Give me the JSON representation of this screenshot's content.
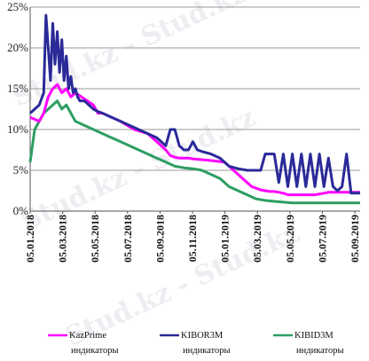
{
  "chart_data": {
    "type": "line",
    "y_ticks": [
      "0%",
      "5%",
      "10%",
      "15%",
      "20%",
      "25%"
    ],
    "ylim": [
      0,
      25
    ],
    "grid": true,
    "x_ticks": [
      "05.01.2018",
      "05.03.2018",
      "05.05.2018",
      "05.07.2018",
      "05.09.2018",
      "05.11.2018",
      "05.01.2019",
      "05.03.2019",
      "05.05.2019",
      "05.07.2019",
      "05.09.2019"
    ],
    "legend_position": "bottom",
    "series": [
      {
        "name": "KazPrime",
        "name_line2": "индикаторы",
        "color": "#ff00ff",
        "x": [
          0,
          2,
          3,
          4,
          5,
          6,
          7,
          8,
          9,
          10,
          14,
          15,
          16,
          18,
          20,
          23,
          26,
          28,
          30,
          31,
          32,
          33,
          34,
          35,
          36,
          38,
          40,
          43,
          44,
          45,
          46,
          47,
          48,
          49,
          50,
          51,
          52,
          53,
          54,
          55,
          56,
          57,
          58,
          59,
          60,
          61,
          62,
          63,
          64,
          65,
          66,
          67,
          68,
          69,
          70,
          71,
          72,
          73
        ],
        "values": [
          11.5,
          11,
          12,
          14,
          15,
          15.5,
          14.5,
          15,
          14,
          14.5,
          13,
          12,
          12,
          11.5,
          11,
          10,
          9.5,
          8.5,
          7.5,
          6.8,
          6.6,
          6.5,
          6.5,
          6.5,
          6.4,
          6.3,
          6.2,
          6.0,
          5.5,
          5.0,
          4.5,
          4.0,
          3.5,
          3.0,
          2.8,
          2.6,
          2.5,
          2.4,
          2.4,
          2.3,
          2.2,
          2.0,
          2.0,
          2.0,
          2.0,
          2.0,
          2.0,
          2.0,
          2.1,
          2.2,
          2.3,
          2.3,
          2.3,
          2.3,
          2.3,
          2.3,
          2.3,
          2.3
        ]
      },
      {
        "name": "KIBOR3M",
        "name_line2": "индикаторы",
        "color": "#2a2a99",
        "x": [
          0,
          1,
          2,
          3,
          3.5,
          4,
          4.5,
          5,
          5.5,
          6,
          6.5,
          7,
          7.5,
          8,
          8.5,
          9,
          9.5,
          10,
          10.5,
          11,
          12,
          13,
          14,
          15,
          16,
          18,
          20,
          22,
          24,
          26,
          28,
          29,
          30,
          31,
          32,
          33,
          34,
          35,
          36,
          37,
          38,
          40,
          42,
          44,
          46,
          48,
          50,
          51,
          52,
          53,
          54,
          55,
          56,
          57,
          58,
          59,
          60,
          61,
          62,
          63,
          64,
          65,
          66,
          67,
          68,
          69,
          70,
          71,
          72,
          73
        ],
        "values": [
          12,
          12.5,
          13,
          14.5,
          24,
          20,
          16,
          23,
          18,
          22,
          17,
          21,
          16,
          19,
          15,
          16.5,
          14.5,
          15,
          14,
          13.5,
          13.5,
          13,
          12.5,
          12.2,
          12,
          11.5,
          11,
          10.5,
          10,
          9.5,
          9,
          8.5,
          8,
          10,
          10,
          8,
          7.5,
          7.5,
          8.5,
          7.5,
          7.3,
          7,
          6.5,
          5.5,
          5.2,
          5.0,
          5.0,
          5.0,
          7.0,
          7.0,
          7.0,
          3.5,
          7.0,
          3.0,
          7.0,
          3.0,
          7.0,
          3.0,
          7.0,
          3.0,
          7.0,
          3.0,
          6.5,
          3.0,
          2.5,
          3.0,
          7.0,
          2.2,
          2.2,
          2.2
        ]
      },
      {
        "name": "KIBID3M",
        "name_line2": "индикаторы",
        "color": "#2e9e63",
        "x": [
          0,
          1,
          2,
          3,
          4,
          5,
          6,
          7,
          8,
          9,
          10,
          12,
          14,
          16,
          18,
          20,
          22,
          24,
          26,
          28,
          30,
          32,
          34,
          36,
          38,
          40,
          42,
          44,
          46,
          48,
          50,
          52,
          54,
          56,
          58,
          60,
          62,
          64,
          66,
          68,
          70,
          72,
          73
        ],
        "values": [
          6,
          10,
          11,
          12,
          12.5,
          13,
          13.5,
          12.5,
          13,
          12,
          11,
          10.5,
          10,
          9.5,
          9,
          8.5,
          8,
          7.5,
          7,
          6.5,
          6,
          5.5,
          5.3,
          5.2,
          5.0,
          4.5,
          4.0,
          3.0,
          2.5,
          2.0,
          1.5,
          1.3,
          1.2,
          1.1,
          1.0,
          1.0,
          1.0,
          1.0,
          1.0,
          1.0,
          1.0,
          1.0,
          1.0
        ]
      }
    ],
    "x_domain": [
      0,
      73
    ]
  },
  "watermark": "Stud.kz - Stud.kz"
}
